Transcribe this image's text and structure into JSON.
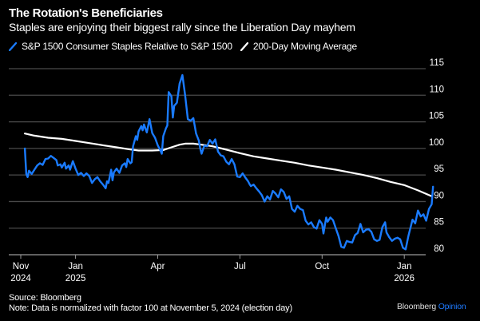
{
  "header": {
    "title": "The Rotation's Beneficiaries",
    "subtitle": "Staples are enjoying their biggest rally since the Liberation Day mayhem"
  },
  "legend": [
    {
      "label": "S&P 1500 Consumer Staples Relative to S&P 1500",
      "color": "#1a7bff",
      "icon": "blue-line-swatch-icon"
    },
    {
      "label": "200-Day Moving Average",
      "color": "#ffffff",
      "icon": "white-line-swatch-icon"
    }
  ],
  "footer": {
    "source": "Source: Bloomberg",
    "note": "Note: Data is normalized with factor 100 at November 5, 2024 (election day)",
    "brand": "Bloomberg",
    "brand_accent": "Opinion",
    "brand_accent_color": "#1f7bff"
  },
  "chart_data": {
    "type": "line",
    "title": "The Rotation's Beneficiaries",
    "subtitle": "Staples are enjoying their biggest rally since the Liberation Day mayhem",
    "xlabel": "",
    "ylabel": "",
    "y_axis_side": "right",
    "ylim": [
      80,
      115
    ],
    "yticks": [
      80,
      85,
      90,
      95,
      100,
      105,
      110,
      115
    ],
    "grid": true,
    "legend_position": "top-left",
    "x_range_months": [
      0.15,
      15.6
    ],
    "xticks": [
      {
        "pos": 0,
        "label": [
          "Nov",
          "2024"
        ]
      },
      {
        "pos": 2,
        "label": [
          "Jan",
          "2025"
        ]
      },
      {
        "pos": 5,
        "label": [
          "Apr",
          ""
        ]
      },
      {
        "pos": 8,
        "label": [
          "Jul",
          ""
        ]
      },
      {
        "pos": 11,
        "label": [
          "Oct",
          ""
        ]
      },
      {
        "pos": 14,
        "label": [
          "Jan",
          "2026"
        ]
      }
    ],
    "x_unit": "months since Nov 1, 2024",
    "series": [
      {
        "name": "S&P 1500 Consumer Staples Relative to S&P 1500",
        "color": "#1a7bff",
        "points": [
          [
            0.15,
            100.0
          ],
          [
            0.2,
            95.2
          ],
          [
            0.25,
            94.6
          ],
          [
            0.3,
            95.8
          ],
          [
            0.4,
            95.2
          ],
          [
            0.5,
            96.0
          ],
          [
            0.6,
            96.8
          ],
          [
            0.7,
            97.2
          ],
          [
            0.8,
            96.9
          ],
          [
            0.9,
            98.0
          ],
          [
            1.0,
            98.1
          ],
          [
            1.1,
            98.6
          ],
          [
            1.2,
            98.2
          ],
          [
            1.3,
            97.8
          ],
          [
            1.35,
            96.8
          ],
          [
            1.45,
            97.0
          ],
          [
            1.5,
            96.4
          ],
          [
            1.6,
            97.3
          ],
          [
            1.65,
            96.2
          ],
          [
            1.75,
            96.8
          ],
          [
            1.8,
            96.0
          ],
          [
            1.9,
            97.6
          ],
          [
            2.0,
            96.2
          ],
          [
            2.1,
            95.0
          ],
          [
            2.2,
            95.4
          ],
          [
            2.3,
            94.8
          ],
          [
            2.4,
            95.3
          ],
          [
            2.5,
            94.8
          ],
          [
            2.6,
            93.5
          ],
          [
            2.7,
            94.2
          ],
          [
            2.8,
            94.6
          ],
          [
            2.9,
            93.8
          ],
          [
            3.0,
            93.2
          ],
          [
            3.1,
            92.5
          ],
          [
            3.15,
            93.8
          ],
          [
            3.2,
            93.5
          ],
          [
            3.3,
            96.0
          ],
          [
            3.35,
            94.0
          ],
          [
            3.4,
            95.5
          ],
          [
            3.5,
            96.2
          ],
          [
            3.6,
            95.4
          ],
          [
            3.7,
            96.8
          ],
          [
            3.8,
            97.2
          ],
          [
            3.85,
            96.5
          ],
          [
            3.9,
            98.0
          ],
          [
            4.0,
            97.2
          ],
          [
            4.05,
            97.4
          ],
          [
            4.1,
            100.4
          ],
          [
            4.2,
            102.3
          ],
          [
            4.25,
            101.6
          ],
          [
            4.3,
            103.2
          ],
          [
            4.4,
            104.2
          ],
          [
            4.45,
            103.4
          ],
          [
            4.5,
            104.5
          ],
          [
            4.6,
            103.0
          ],
          [
            4.7,
            105.5
          ],
          [
            4.8,
            102.9
          ],
          [
            4.9,
            102.0
          ],
          [
            5.0,
            100.6
          ],
          [
            5.1,
            99.6
          ],
          [
            5.15,
            99.0
          ],
          [
            5.2,
            102.3
          ],
          [
            5.3,
            103.8
          ],
          [
            5.35,
            104.3
          ],
          [
            5.4,
            110.6
          ],
          [
            5.5,
            109.8
          ],
          [
            5.55,
            105.8
          ],
          [
            5.6,
            108.0
          ],
          [
            5.7,
            108.6
          ],
          [
            5.8,
            112.2
          ],
          [
            5.9,
            113.8
          ],
          [
            6.0,
            110.0
          ],
          [
            6.1,
            105.5
          ],
          [
            6.2,
            105.2
          ],
          [
            6.3,
            105.7
          ],
          [
            6.4,
            102.8
          ],
          [
            6.5,
            101.5
          ],
          [
            6.55,
            100.0
          ],
          [
            6.6,
            99.0
          ],
          [
            6.7,
            100.5
          ],
          [
            6.8,
            100.4
          ],
          [
            6.9,
            101.6
          ],
          [
            7.0,
            100.9
          ],
          [
            7.1,
            101.7
          ],
          [
            7.2,
            99.4
          ],
          [
            7.3,
            98.7
          ],
          [
            7.4,
            98.5
          ],
          [
            7.5,
            97.5
          ],
          [
            7.6,
            97.0
          ],
          [
            7.7,
            98.0
          ],
          [
            7.8,
            97.0
          ],
          [
            7.9,
            94.7
          ],
          [
            8.0,
            94.6
          ],
          [
            8.1,
            95.3
          ],
          [
            8.2,
            94.5
          ],
          [
            8.3,
            93.8
          ],
          [
            8.35,
            93.3
          ],
          [
            8.4,
            92.9
          ],
          [
            8.5,
            93.2
          ],
          [
            8.6,
            92.5
          ],
          [
            8.7,
            91.9
          ],
          [
            8.8,
            91.2
          ],
          [
            8.9,
            90.0
          ],
          [
            9.0,
            91.0
          ],
          [
            9.1,
            90.4
          ],
          [
            9.2,
            92.0
          ],
          [
            9.3,
            91.5
          ],
          [
            9.4,
            90.8
          ],
          [
            9.5,
            92.3
          ],
          [
            9.6,
            91.8
          ],
          [
            9.7,
            90.5
          ],
          [
            9.8,
            91.0
          ],
          [
            9.9,
            88.6
          ],
          [
            10.0,
            88.1
          ],
          [
            10.1,
            89.2
          ],
          [
            10.2,
            88.6
          ],
          [
            10.3,
            88.4
          ],
          [
            10.4,
            86.4
          ],
          [
            10.5,
            85.7
          ],
          [
            10.6,
            86.1
          ],
          [
            10.7,
            85.2
          ],
          [
            10.8,
            84.9
          ],
          [
            10.9,
            86.5
          ],
          [
            11.0,
            85.8
          ],
          [
            11.05,
            84.0
          ],
          [
            11.15,
            87.0
          ],
          [
            11.2,
            86.2
          ],
          [
            11.3,
            87.0
          ],
          [
            11.4,
            86.5
          ],
          [
            11.5,
            85.0
          ],
          [
            11.6,
            83.5
          ],
          [
            11.7,
            81.5
          ],
          [
            11.8,
            81.3
          ],
          [
            11.9,
            82.6
          ],
          [
            12.0,
            82.4
          ],
          [
            12.1,
            82.3
          ],
          [
            12.2,
            83.7
          ],
          [
            12.3,
            84.1
          ],
          [
            12.4,
            85.8
          ],
          [
            12.5,
            84.2
          ],
          [
            12.6,
            84.7
          ],
          [
            12.7,
            84.8
          ],
          [
            12.8,
            84.3
          ],
          [
            12.9,
            82.9
          ],
          [
            13.0,
            82.6
          ],
          [
            13.1,
            82.8
          ],
          [
            13.2,
            85.2
          ],
          [
            13.3,
            86.1
          ],
          [
            13.35,
            84.2
          ],
          [
            13.45,
            83.3
          ],
          [
            13.55,
            82.6
          ],
          [
            13.65,
            83.0
          ],
          [
            13.75,
            83.2
          ],
          [
            13.85,
            82.9
          ],
          [
            13.95,
            81.3
          ],
          [
            14.05,
            81.0
          ],
          [
            14.15,
            83.5
          ],
          [
            14.3,
            86.6
          ],
          [
            14.4,
            85.9
          ],
          [
            14.5,
            88.3
          ],
          [
            14.6,
            87.2
          ],
          [
            14.7,
            87.6
          ],
          [
            14.8,
            86.4
          ],
          [
            14.9,
            88.6
          ],
          [
            15.0,
            89.5
          ],
          [
            15.05,
            92.8
          ]
        ]
      },
      {
        "name": "200-Day Moving Average",
        "color": "#ffffff",
        "points": [
          [
            0.15,
            102.8
          ],
          [
            0.5,
            102.4
          ],
          [
            1.0,
            102.0
          ],
          [
            1.5,
            101.8
          ],
          [
            2.0,
            101.4
          ],
          [
            2.5,
            101.0
          ],
          [
            3.0,
            100.6
          ],
          [
            3.5,
            100.2
          ],
          [
            4.0,
            99.8
          ],
          [
            4.3,
            99.6
          ],
          [
            4.8,
            99.6
          ],
          [
            5.2,
            99.7
          ],
          [
            5.5,
            100.2
          ],
          [
            5.8,
            100.7
          ],
          [
            6.0,
            100.9
          ],
          [
            6.3,
            100.9
          ],
          [
            6.6,
            100.7
          ],
          [
            7.0,
            100.4
          ],
          [
            7.4,
            99.9
          ],
          [
            8.0,
            99.1
          ],
          [
            8.5,
            98.5
          ],
          [
            9.0,
            98.1
          ],
          [
            9.5,
            97.7
          ],
          [
            10.0,
            97.3
          ],
          [
            10.5,
            96.8
          ],
          [
            11.0,
            96.4
          ],
          [
            11.5,
            96.0
          ],
          [
            12.0,
            95.5
          ],
          [
            12.5,
            95.0
          ],
          [
            13.0,
            94.4
          ],
          [
            13.5,
            93.7
          ],
          [
            14.0,
            93.1
          ],
          [
            14.5,
            92.1
          ],
          [
            15.0,
            91.0
          ]
        ]
      }
    ]
  }
}
